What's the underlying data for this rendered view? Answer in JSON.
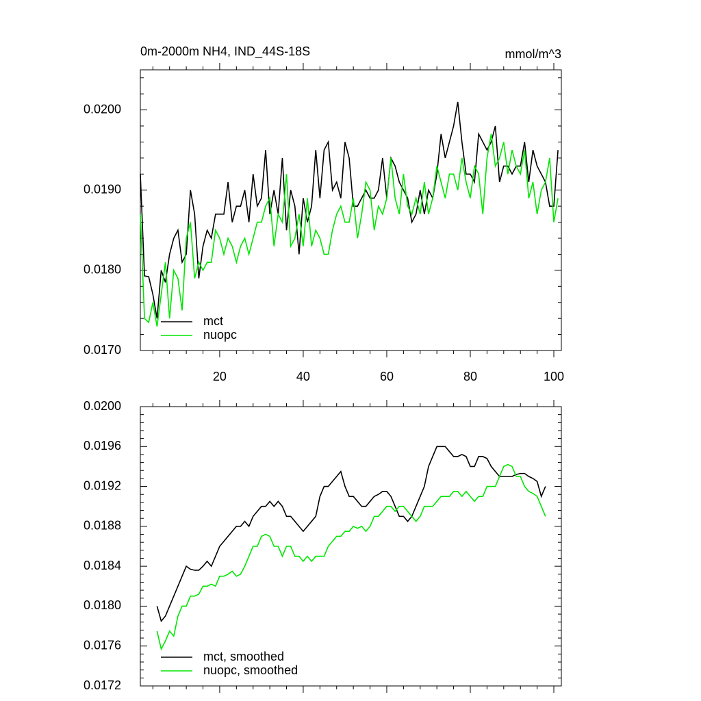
{
  "chart_data": [
    {
      "type": "line",
      "title": "0m-2000m NH4, IND_44S-18S",
      "units": "mmol/m^3",
      "x": [
        1,
        2,
        3,
        4,
        5,
        6,
        7,
        8,
        9,
        10,
        11,
        12,
        13,
        14,
        15,
        16,
        17,
        18,
        19,
        20,
        21,
        22,
        23,
        24,
        25,
        26,
        27,
        28,
        29,
        30,
        31,
        32,
        33,
        34,
        35,
        36,
        37,
        38,
        39,
        40,
        41,
        42,
        43,
        44,
        45,
        46,
        47,
        48,
        49,
        50,
        51,
        52,
        53,
        54,
        55,
        56,
        57,
        58,
        59,
        60,
        61,
        62,
        63,
        64,
        65,
        66,
        67,
        68,
        69,
        70,
        71,
        72,
        73,
        74,
        75,
        76,
        77,
        78,
        79,
        80,
        81,
        82,
        83,
        84,
        85,
        86,
        87,
        88,
        89,
        90,
        91,
        92,
        93,
        94,
        95,
        96,
        97,
        98,
        99,
        100,
        101
      ],
      "series": [
        {
          "name": "mct",
          "color": "#000000",
          "values": [
            0.0192,
            0.01793,
            0.01792,
            0.0177,
            0.0174,
            0.018,
            0.01785,
            0.0182,
            0.0184,
            0.0185,
            0.0181,
            0.0182,
            0.019,
            0.0187,
            0.0179,
            0.0183,
            0.0185,
            0.0184,
            0.0187,
            0.0187,
            0.0187,
            0.0191,
            0.0186,
            0.0188,
            0.0188,
            0.019,
            0.0186,
            0.0192,
            0.0188,
            0.0189,
            0.0195,
            0.0187,
            0.019,
            0.0187,
            0.0194,
            0.0185,
            0.019,
            0.0188,
            0.0182,
            0.0189,
            0.0186,
            0.0188,
            0.0195,
            0.0189,
            0.0195,
            0.0196,
            0.019,
            0.0191,
            0.0189,
            0.0196,
            0.0194,
            0.0188,
            0.0188,
            0.0189,
            0.019,
            0.0189,
            0.0189,
            0.019,
            0.0194,
            0.0189,
            0.0194,
            0.0193,
            0.0191,
            0.019,
            0.0189,
            0.0186,
            0.0187,
            0.019,
            0.0187,
            0.019,
            0.0189,
            0.0192,
            0.0197,
            0.0194,
            0.0196,
            0.0198,
            0.0201,
            0.0196,
            0.0192,
            0.0192,
            0.0191,
            0.0197,
            0.0196,
            0.0195,
            0.0196,
            0.0198,
            0.0191,
            0.0193,
            0.0193,
            0.0192,
            0.0193,
            0.0193,
            0.0196,
            0.0191,
            0.0195,
            0.0193,
            0.0192,
            0.0191,
            0.0188,
            0.0188,
            0.0195
          ]
        },
        {
          "name": "nuopc",
          "color": "#00e600",
          "values": [
            0.0187,
            0.0174,
            0.01735,
            0.0176,
            0.0173,
            0.0177,
            0.0181,
            0.0174,
            0.018,
            0.0179,
            0.0175,
            0.0184,
            0.0186,
            0.0179,
            0.0181,
            0.018,
            0.0181,
            0.0181,
            0.0185,
            0.0184,
            0.0182,
            0.0184,
            0.0183,
            0.0181,
            0.0183,
            0.0184,
            0.0182,
            0.0184,
            0.0186,
            0.0186,
            0.0188,
            0.0189,
            0.0183,
            0.0187,
            0.0186,
            0.0192,
            0.0183,
            0.0184,
            0.0187,
            0.0183,
            0.0189,
            0.0183,
            0.0185,
            0.0184,
            0.0182,
            0.0182,
            0.0185,
            0.0187,
            0.0188,
            0.0186,
            0.0186,
            0.0189,
            0.0184,
            0.0187,
            0.0191,
            0.019,
            0.0185,
            0.0188,
            0.0187,
            0.0189,
            0.0194,
            0.0189,
            0.0187,
            0.0192,
            0.0188,
            0.0187,
            0.0189,
            0.0187,
            0.0191,
            0.0187,
            0.0189,
            0.0193,
            0.0191,
            0.0189,
            0.0192,
            0.0192,
            0.019,
            0.0194,
            0.0191,
            0.0189,
            0.0193,
            0.0192,
            0.0187,
            0.0194,
            0.0197,
            0.0193,
            0.0194,
            0.0196,
            0.0192,
            0.0195,
            0.0193,
            0.0192,
            0.0195,
            0.0189,
            0.0191,
            0.0187,
            0.019,
            0.0191,
            0.0194,
            0.0186,
            0.0189
          ]
        }
      ],
      "xlim": [
        1,
        101.8
      ],
      "xticks": [
        20,
        40,
        60,
        80,
        100
      ],
      "xtick_labels": true,
      "ylim": [
        0.017,
        0.0205
      ],
      "yticks": [
        {
          "value": 0.017,
          "label": "0.0170"
        },
        {
          "value": 0.018,
          "label": "0.0180"
        },
        {
          "value": 0.019,
          "label": "0.0190"
        },
        {
          "value": 0.02,
          "label": "0.0200"
        }
      ],
      "legend": "lower left"
    },
    {
      "type": "line",
      "x": [
        5,
        6,
        7,
        8,
        9,
        10,
        11,
        12,
        13,
        14,
        15,
        16,
        17,
        18,
        19,
        20,
        21,
        22,
        23,
        24,
        25,
        26,
        27,
        28,
        29,
        30,
        31,
        32,
        33,
        34,
        35,
        36,
        37,
        38,
        39,
        40,
        41,
        42,
        43,
        44,
        45,
        46,
        47,
        48,
        49,
        50,
        51,
        52,
        53,
        54,
        55,
        56,
        57,
        58,
        59,
        60,
        61,
        62,
        63,
        64,
        65,
        66,
        67,
        68,
        69,
        70,
        71,
        72,
        73,
        74,
        75,
        76,
        77,
        78,
        79,
        80,
        81,
        82,
        83,
        84,
        85,
        86,
        87,
        88,
        89,
        90,
        91,
        92,
        93,
        94,
        95,
        96,
        97,
        98
      ],
      "series": [
        {
          "name": "mct, smoothed",
          "color": "#000000",
          "values": [
            0.018,
            0.01785,
            0.0179,
            0.018,
            0.0181,
            0.0182,
            0.0183,
            0.0184,
            0.01837,
            0.01836,
            0.01836,
            0.0184,
            0.01845,
            0.0184,
            0.0185,
            0.0186,
            0.01865,
            0.0187,
            0.01875,
            0.0188,
            0.0188,
            0.01885,
            0.0188,
            0.0189,
            0.01895,
            0.019,
            0.019,
            0.01905,
            0.019,
            0.01905,
            0.019,
            0.0189,
            0.0189,
            0.01885,
            0.0188,
            0.01875,
            0.0188,
            0.01885,
            0.0189,
            0.0191,
            0.0192,
            0.0192,
            0.01925,
            0.0193,
            0.01935,
            0.0192,
            0.0191,
            0.0191,
            0.01905,
            0.019,
            0.019,
            0.01905,
            0.0191,
            0.01912,
            0.01915,
            0.01915,
            0.0191,
            0.019,
            0.0189,
            0.0189,
            0.01885,
            0.0189,
            0.019,
            0.0191,
            0.0192,
            0.0194,
            0.0195,
            0.0196,
            0.0196,
            0.0196,
            0.01955,
            0.0195,
            0.0195,
            0.01952,
            0.0195,
            0.0194,
            0.0194,
            0.0195,
            0.0195,
            0.01948,
            0.0194,
            0.01935,
            0.0193,
            0.0193,
            0.0193,
            0.0193,
            0.01932,
            0.01933,
            0.01933,
            0.0193,
            0.01928,
            0.01925,
            0.0191,
            0.0192
          ]
        },
        {
          "name": "nuopc, smoothed",
          "color": "#00e600",
          "values": [
            0.01775,
            0.01757,
            0.01765,
            0.01775,
            0.0177,
            0.0179,
            0.018,
            0.018,
            0.0181,
            0.0181,
            0.01812,
            0.0182,
            0.0182,
            0.01822,
            0.0182,
            0.0183,
            0.0183,
            0.01832,
            0.01835,
            0.0183,
            0.01832,
            0.0184,
            0.0185,
            0.0186,
            0.0186,
            0.0187,
            0.01872,
            0.0187,
            0.0186,
            0.0186,
            0.0185,
            0.0186,
            0.0186,
            0.0185,
            0.0185,
            0.01845,
            0.0185,
            0.01845,
            0.0185,
            0.0185,
            0.0185,
            0.0186,
            0.01865,
            0.0187,
            0.0187,
            0.01875,
            0.01875,
            0.0188,
            0.01878,
            0.0188,
            0.01875,
            0.0188,
            0.0189,
            0.0189,
            0.01895,
            0.019,
            0.019,
            0.01895,
            0.019,
            0.019,
            0.01895,
            0.0189,
            0.01885,
            0.0189,
            0.019,
            0.019,
            0.019,
            0.01905,
            0.0191,
            0.0191,
            0.0191,
            0.01915,
            0.01915,
            0.0191,
            0.01915,
            0.0191,
            0.01905,
            0.0191,
            0.0191,
            0.0192,
            0.0192,
            0.0192,
            0.0193,
            0.0194,
            0.01942,
            0.0194,
            0.0193,
            0.0193,
            0.0192,
            0.01915,
            0.01913,
            0.0191,
            0.019,
            0.0189
          ]
        }
      ],
      "xlim": [
        1,
        101.8
      ],
      "xticks": [
        20,
        40,
        60,
        80,
        100
      ],
      "xtick_labels": false,
      "ylim": [
        0.0172,
        0.02
      ],
      "yticks": [
        {
          "value": 0.0172,
          "label": "0.0172"
        },
        {
          "value": 0.0176,
          "label": "0.0176"
        },
        {
          "value": 0.018,
          "label": "0.0180"
        },
        {
          "value": 0.0184,
          "label": "0.0184"
        },
        {
          "value": 0.0188,
          "label": "0.0188"
        },
        {
          "value": 0.0192,
          "label": "0.0192"
        },
        {
          "value": 0.0196,
          "label": "0.0196"
        },
        {
          "value": 0.02,
          "label": "0.0200"
        }
      ],
      "legend": "lower left"
    }
  ]
}
